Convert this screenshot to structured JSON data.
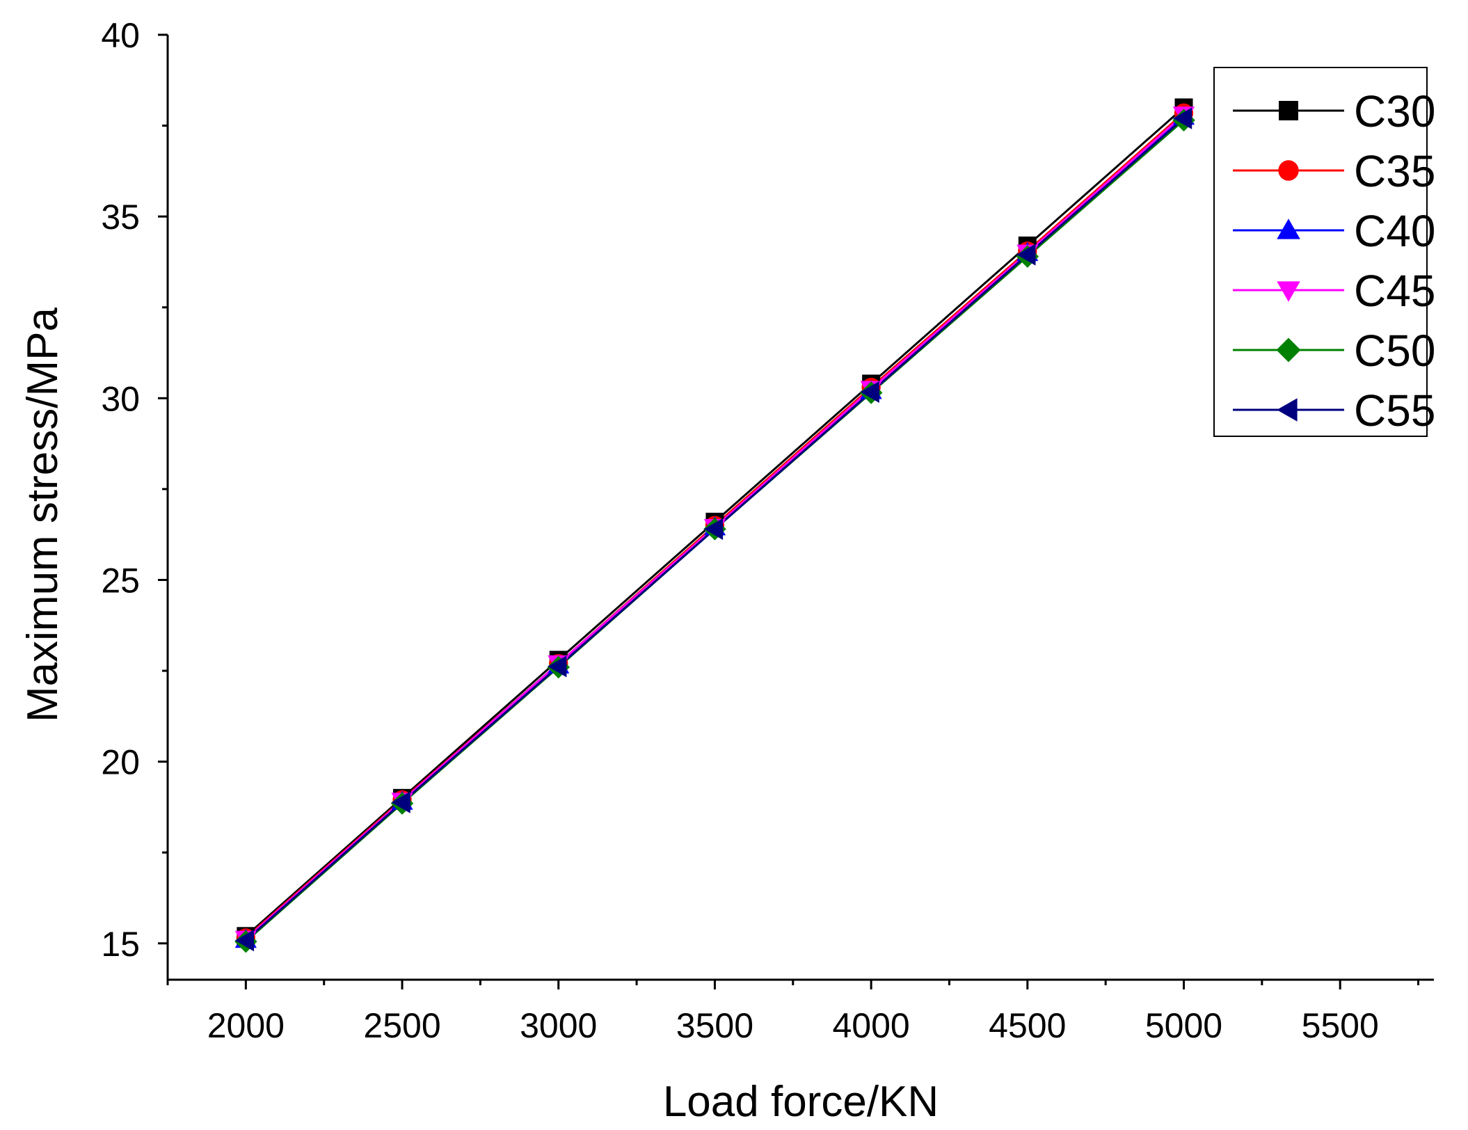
{
  "chart_data": {
    "type": "line",
    "xlabel": "Load force/KN",
    "ylabel": "Maximum stress/MPa",
    "xlim": [
      1750,
      5800
    ],
    "ylim": [
      14,
      40
    ],
    "x_ticks": [
      2000,
      2500,
      3000,
      3500,
      4000,
      4500,
      5000,
      5500
    ],
    "y_ticks": [
      15,
      20,
      25,
      30,
      35,
      40
    ],
    "grid": false,
    "legend_position": "top-right",
    "x": [
      2000,
      2500,
      3000,
      3500,
      4000,
      4500,
      5000
    ],
    "series": [
      {
        "name": "C30",
        "color": "#000000",
        "marker": "square",
        "values": [
          15.2,
          19.0,
          22.8,
          26.6,
          30.4,
          34.2,
          38.0
        ]
      },
      {
        "name": "C35",
        "color": "#ff0000",
        "marker": "circle",
        "values": [
          15.15,
          18.95,
          22.7,
          26.5,
          30.3,
          34.05,
          37.85
        ]
      },
      {
        "name": "C40",
        "color": "#0000ff",
        "marker": "triangle-up",
        "values": [
          15.1,
          18.9,
          22.65,
          26.45,
          30.2,
          34.0,
          37.75
        ]
      },
      {
        "name": "C45",
        "color": "#ff00ff",
        "marker": "triangle-down",
        "values": [
          15.12,
          18.92,
          22.7,
          26.45,
          30.25,
          34.0,
          37.8
        ]
      },
      {
        "name": "C50",
        "color": "#008000",
        "marker": "diamond",
        "values": [
          15.05,
          18.85,
          22.6,
          26.4,
          30.15,
          33.9,
          37.65
        ]
      },
      {
        "name": "C55",
        "color": "#00007f",
        "marker": "triangle-left",
        "values": [
          15.08,
          18.88,
          22.62,
          26.4,
          30.17,
          33.95,
          37.7
        ]
      }
    ]
  }
}
